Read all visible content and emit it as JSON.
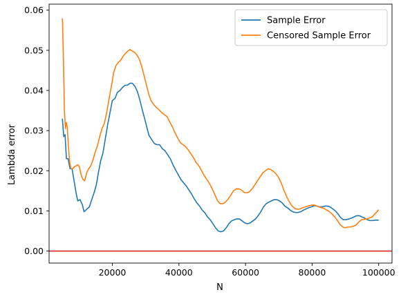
{
  "chart_data": {
    "type": "line",
    "xlabel": "N",
    "ylabel": "Lambda error",
    "xlim": [
      1000,
      104000
    ],
    "ylim": [
      -0.003,
      0.0615
    ],
    "x_ticks": [
      20000,
      40000,
      60000,
      80000,
      100000
    ],
    "x_tick_labels": [
      "20000",
      "40000",
      "60000",
      "80000",
      "100000"
    ],
    "y_ticks": [
      0.0,
      0.01,
      0.02,
      0.03,
      0.04,
      0.05,
      0.06
    ],
    "y_tick_labels": [
      "0.00",
      "0.01",
      "0.02",
      "0.03",
      "0.04",
      "0.05",
      "0.06"
    ],
    "grid": false,
    "legend_position": "top-right",
    "reference_line": {
      "y": 0.0,
      "color": "#d62728"
    },
    "series": [
      {
        "name": "Sample Error",
        "color": "#1f77b4",
        "points": [
          [
            5000,
            0.033
          ],
          [
            5400,
            0.0285
          ],
          [
            5800,
            0.029
          ],
          [
            6200,
            0.023
          ],
          [
            6700,
            0.023
          ],
          [
            7300,
            0.0205
          ],
          [
            7900,
            0.0205
          ],
          [
            8500,
            0.0175
          ],
          [
            9100,
            0.0145
          ],
          [
            9600,
            0.0125
          ],
          [
            10300,
            0.0128
          ],
          [
            11000,
            0.0115
          ],
          [
            11500,
            0.0098
          ],
          [
            12300,
            0.0104
          ],
          [
            13100,
            0.011
          ],
          [
            13800,
            0.0128
          ],
          [
            14500,
            0.0145
          ],
          [
            15200,
            0.0165
          ],
          [
            15800,
            0.0195
          ],
          [
            16500,
            0.0225
          ],
          [
            17200,
            0.0245
          ],
          [
            17900,
            0.028
          ],
          [
            18600,
            0.0315
          ],
          [
            19300,
            0.0345
          ],
          [
            20000,
            0.0375
          ],
          [
            20800,
            0.038
          ],
          [
            21500,
            0.0395
          ],
          [
            22300,
            0.04
          ],
          [
            23100,
            0.0408
          ],
          [
            23800,
            0.0413
          ],
          [
            24500,
            0.0413
          ],
          [
            25300,
            0.0418
          ],
          [
            26000,
            0.0418
          ],
          [
            26800,
            0.041
          ],
          [
            27500,
            0.0398
          ],
          [
            28200,
            0.0378
          ],
          [
            28900,
            0.0355
          ],
          [
            29600,
            0.0333
          ],
          [
            30300,
            0.031
          ],
          [
            31000,
            0.0288
          ],
          [
            31800,
            0.0278
          ],
          [
            32600,
            0.0268
          ],
          [
            33400,
            0.0265
          ],
          [
            34200,
            0.0265
          ],
          [
            35000,
            0.0255
          ],
          [
            35800,
            0.025
          ],
          [
            36600,
            0.024
          ],
          [
            37400,
            0.023
          ],
          [
            38200,
            0.0215
          ],
          [
            39000,
            0.0202
          ],
          [
            39800,
            0.019
          ],
          [
            40600,
            0.0178
          ],
          [
            41400,
            0.017
          ],
          [
            42200,
            0.0162
          ],
          [
            43000,
            0.0152
          ],
          [
            43800,
            0.0142
          ],
          [
            44600,
            0.013
          ],
          [
            45400,
            0.012
          ],
          [
            46200,
            0.0112
          ],
          [
            47000,
            0.0102
          ],
          [
            47800,
            0.0095
          ],
          [
            48600,
            0.0085
          ],
          [
            49400,
            0.0078
          ],
          [
            50200,
            0.0068
          ],
          [
            51000,
            0.0058
          ],
          [
            51800,
            0.005
          ],
          [
            52600,
            0.0048
          ],
          [
            53400,
            0.005
          ],
          [
            54200,
            0.0058
          ],
          [
            55000,
            0.0068
          ],
          [
            55800,
            0.0075
          ],
          [
            56600,
            0.0078
          ],
          [
            57400,
            0.008
          ],
          [
            58200,
            0.008
          ],
          [
            59000,
            0.0075
          ],
          [
            59800,
            0.007
          ],
          [
            60600,
            0.0068
          ],
          [
            61400,
            0.007
          ],
          [
            62200,
            0.0075
          ],
          [
            63000,
            0.008
          ],
          [
            63800,
            0.0088
          ],
          [
            64600,
            0.0098
          ],
          [
            65400,
            0.011
          ],
          [
            66200,
            0.0118
          ],
          [
            67000,
            0.0122
          ],
          [
            67800,
            0.0125
          ],
          [
            68600,
            0.0128
          ],
          [
            69400,
            0.0128
          ],
          [
            70200,
            0.0125
          ],
          [
            71000,
            0.012
          ],
          [
            71800,
            0.0112
          ],
          [
            72600,
            0.0108
          ],
          [
            73400,
            0.0102
          ],
          [
            74200,
            0.0098
          ],
          [
            75000,
            0.0096
          ],
          [
            75800,
            0.0096
          ],
          [
            76600,
            0.0098
          ],
          [
            77400,
            0.0102
          ],
          [
            78200,
            0.0105
          ],
          [
            79000,
            0.0108
          ],
          [
            79800,
            0.011
          ],
          [
            80600,
            0.0113
          ],
          [
            81400,
            0.0112
          ],
          [
            82200,
            0.011
          ],
          [
            83000,
            0.011
          ],
          [
            83800,
            0.0112
          ],
          [
            84600,
            0.0112
          ],
          [
            85400,
            0.011
          ],
          [
            86200,
            0.0105
          ],
          [
            87000,
            0.01
          ],
          [
            87800,
            0.0092
          ],
          [
            88600,
            0.0083
          ],
          [
            89400,
            0.0078
          ],
          [
            90200,
            0.0078
          ],
          [
            91000,
            0.008
          ],
          [
            91800,
            0.0082
          ],
          [
            92600,
            0.0085
          ],
          [
            93400,
            0.0088
          ],
          [
            94200,
            0.0088
          ],
          [
            95000,
            0.0085
          ],
          [
            95800,
            0.0082
          ],
          [
            96600,
            0.0078
          ],
          [
            97400,
            0.0076
          ],
          [
            98200,
            0.0076
          ],
          [
            99000,
            0.0077
          ],
          [
            100000,
            0.0077
          ]
        ]
      },
      {
        "name": "Censored Sample Error",
        "color": "#ff7f0e",
        "points": [
          [
            5000,
            0.058
          ],
          [
            5300,
            0.048
          ],
          [
            5600,
            0.035
          ],
          [
            5900,
            0.0305
          ],
          [
            6200,
            0.032
          ],
          [
            6500,
            0.0305
          ],
          [
            6800,
            0.026
          ],
          [
            7200,
            0.022
          ],
          [
            7600,
            0.0205
          ],
          [
            8100,
            0.0205
          ],
          [
            8600,
            0.021
          ],
          [
            9100,
            0.0212
          ],
          [
            9600,
            0.0215
          ],
          [
            10100,
            0.021
          ],
          [
            10600,
            0.019
          ],
          [
            11200,
            0.0178
          ],
          [
            11700,
            0.0175
          ],
          [
            12300,
            0.0195
          ],
          [
            12900,
            0.0205
          ],
          [
            13500,
            0.0212
          ],
          [
            14100,
            0.0225
          ],
          [
            14800,
            0.0245
          ],
          [
            15500,
            0.0262
          ],
          [
            16200,
            0.0285
          ],
          [
            16900,
            0.0305
          ],
          [
            17600,
            0.0318
          ],
          [
            18300,
            0.0345
          ],
          [
            19000,
            0.0378
          ],
          [
            19700,
            0.041
          ],
          [
            20400,
            0.0445
          ],
          [
            21100,
            0.0462
          ],
          [
            21800,
            0.047
          ],
          [
            22500,
            0.0475
          ],
          [
            23200,
            0.0485
          ],
          [
            23900,
            0.0492
          ],
          [
            24600,
            0.0498
          ],
          [
            25300,
            0.0502
          ],
          [
            26000,
            0.0498
          ],
          [
            26700,
            0.0495
          ],
          [
            27400,
            0.0488
          ],
          [
            28100,
            0.0478
          ],
          [
            28800,
            0.046
          ],
          [
            29500,
            0.0438
          ],
          [
            30200,
            0.0415
          ],
          [
            30900,
            0.0392
          ],
          [
            31600,
            0.0375
          ],
          [
            32400,
            0.0365
          ],
          [
            33200,
            0.0358
          ],
          [
            34000,
            0.0352
          ],
          [
            34800,
            0.0345
          ],
          [
            35600,
            0.034
          ],
          [
            36400,
            0.0335
          ],
          [
            37200,
            0.0322
          ],
          [
            38000,
            0.031
          ],
          [
            38800,
            0.0295
          ],
          [
            39600,
            0.0282
          ],
          [
            40400,
            0.027
          ],
          [
            41200,
            0.0265
          ],
          [
            42000,
            0.026
          ],
          [
            42800,
            0.0252
          ],
          [
            43600,
            0.0242
          ],
          [
            44400,
            0.0232
          ],
          [
            45200,
            0.022
          ],
          [
            46000,
            0.0212
          ],
          [
            46800,
            0.02
          ],
          [
            47600,
            0.0188
          ],
          [
            48400,
            0.0178
          ],
          [
            49200,
            0.0168
          ],
          [
            50000,
            0.0155
          ],
          [
            50800,
            0.014
          ],
          [
            51600,
            0.0125
          ],
          [
            52400,
            0.0118
          ],
          [
            53200,
            0.0118
          ],
          [
            54000,
            0.0122
          ],
          [
            54800,
            0.013
          ],
          [
            55600,
            0.014
          ],
          [
            56400,
            0.015
          ],
          [
            57200,
            0.0155
          ],
          [
            58000,
            0.0155
          ],
          [
            58800,
            0.0152
          ],
          [
            59600,
            0.0146
          ],
          [
            60400,
            0.0145
          ],
          [
            61200,
            0.0148
          ],
          [
            62000,
            0.0155
          ],
          [
            62800,
            0.0165
          ],
          [
            63600,
            0.0175
          ],
          [
            64400,
            0.0185
          ],
          [
            65200,
            0.0195
          ],
          [
            66000,
            0.02
          ],
          [
            66800,
            0.0205
          ],
          [
            67600,
            0.0203
          ],
          [
            68400,
            0.0198
          ],
          [
            69200,
            0.0192
          ],
          [
            70000,
            0.0182
          ],
          [
            70800,
            0.0168
          ],
          [
            71600,
            0.015
          ],
          [
            72400,
            0.0135
          ],
          [
            73200,
            0.0122
          ],
          [
            74000,
            0.0112
          ],
          [
            74800,
            0.0106
          ],
          [
            75600,
            0.0104
          ],
          [
            76400,
            0.0105
          ],
          [
            77200,
            0.0108
          ],
          [
            78000,
            0.011
          ],
          [
            78800,
            0.0112
          ],
          [
            79600,
            0.0114
          ],
          [
            80400,
            0.0115
          ],
          [
            81200,
            0.0113
          ],
          [
            82000,
            0.011
          ],
          [
            82800,
            0.0108
          ],
          [
            83600,
            0.0106
          ],
          [
            84400,
            0.0102
          ],
          [
            85200,
            0.0098
          ],
          [
            86000,
            0.0092
          ],
          [
            86800,
            0.0085
          ],
          [
            87600,
            0.0076
          ],
          [
            88400,
            0.0066
          ],
          [
            89200,
            0.006
          ],
          [
            90000,
            0.0058
          ],
          [
            90800,
            0.006
          ],
          [
            91600,
            0.006
          ],
          [
            92400,
            0.0062
          ],
          [
            93200,
            0.0065
          ],
          [
            94000,
            0.0072
          ],
          [
            94800,
            0.0078
          ],
          [
            95600,
            0.0079
          ],
          [
            96400,
            0.008
          ],
          [
            97200,
            0.0082
          ],
          [
            98000,
            0.0085
          ],
          [
            98800,
            0.0092
          ],
          [
            99500,
            0.0098
          ],
          [
            100000,
            0.0103
          ]
        ]
      }
    ]
  }
}
